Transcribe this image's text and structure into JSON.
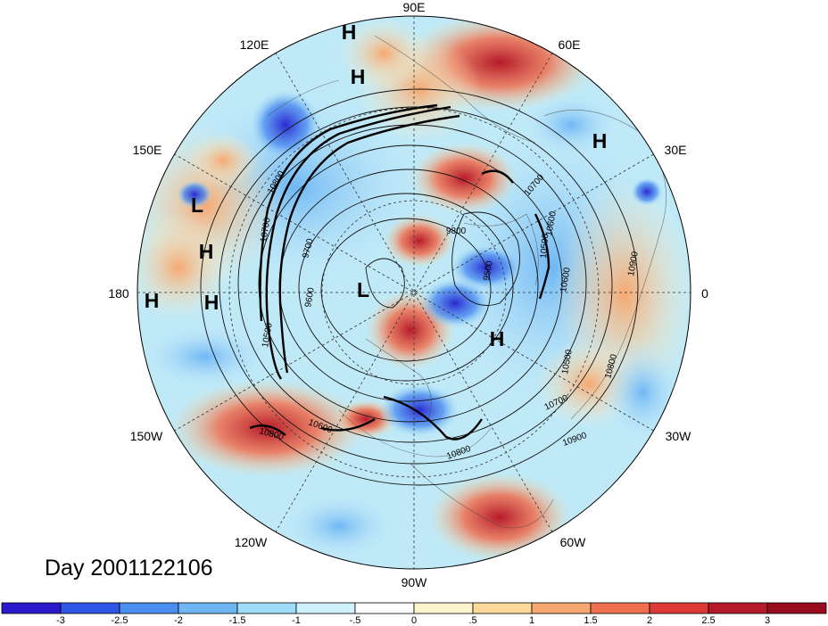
{
  "title": "Day 2001122106",
  "longitude_labels": [
    "90E",
    "60E",
    "30E",
    "0",
    "30W",
    "60W",
    "90W",
    "120W",
    "150W",
    "180",
    "150E",
    "120E"
  ],
  "pressure_centers": [
    {
      "label": "H",
      "lon_lat_desc": "near 90E top"
    },
    {
      "label": "H",
      "lon_lat_desc": "below 90E"
    },
    {
      "label": "H",
      "lon_lat_desc": "near 30E"
    },
    {
      "label": "L",
      "lon_lat_desc": "near 150E"
    },
    {
      "label": "H",
      "lon_lat_desc": "west of dateline"
    },
    {
      "label": "H",
      "lon_lat_desc": "180 left"
    },
    {
      "label": "H",
      "lon_lat_desc": "180 right"
    },
    {
      "label": "L",
      "lon_lat_desc": "near pole"
    },
    {
      "label": "H",
      "lon_lat_desc": "north Atlantic"
    }
  ],
  "contour_labels": [
    "10800",
    "10700",
    "9700",
    "9600",
    "9800",
    "10700",
    "10600",
    "10500",
    "9500",
    "10600",
    "10900",
    "10500",
    "10800",
    "10700",
    "10900",
    "10800",
    "10800",
    "10600",
    "10500"
  ],
  "colorbar": {
    "ticks": [
      "-3",
      "-2.5",
      "-2",
      "-1.5",
      "-1",
      "-.5",
      "0",
      ".5",
      "1",
      "1.5",
      "2",
      "2.5",
      "3"
    ],
    "colors": [
      "#2a1acb",
      "#2e55e6",
      "#4a8ef0",
      "#6fb7f4",
      "#9fdcf8",
      "#cff1fb",
      "#ffffff",
      "#fdf3cc",
      "#fbd99a",
      "#f6a870",
      "#ef6f4f",
      "#de3a35",
      "#b51a2a",
      "#980c1e"
    ]
  }
}
